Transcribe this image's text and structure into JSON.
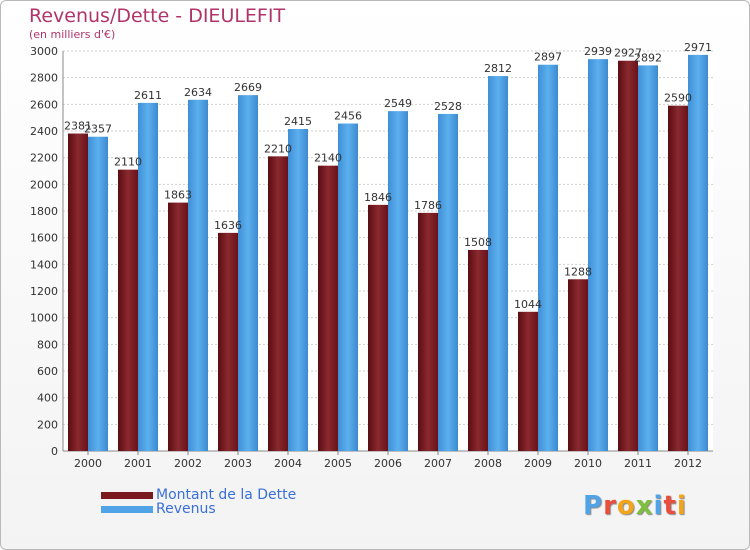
{
  "title": "Revenus/Dette - DIEULEFIT",
  "subtitle": "(en milliers d'€)",
  "logo": "Proxiti",
  "colors": {
    "dette": "#7a1a1f",
    "revenus": "#4fa3e6",
    "grid": "#cfcfcf",
    "title": "#b0346a",
    "legend_text": "#3a6fd8"
  },
  "legend": [
    {
      "label": "Montant de la Dette",
      "color": "#7a1a1f"
    },
    {
      "label": "Revenus",
      "color": "#4fa3e6"
    }
  ],
  "chart_data": {
    "type": "bar",
    "title": "Revenus/Dette - DIEULEFIT",
    "subtitle": "(en milliers d'€)",
    "categories": [
      "2000",
      "2001",
      "2002",
      "2003",
      "2004",
      "2005",
      "2006",
      "2007",
      "2008",
      "2009",
      "2010",
      "2011",
      "2012"
    ],
    "series": [
      {
        "name": "Montant de la Dette",
        "values": [
          2381,
          2110,
          1863,
          1636,
          2210,
          2140,
          1846,
          1786,
          1508,
          1044,
          1288,
          2927,
          2590
        ],
        "labels": [
          "2381",
          "2110",
          "1863",
          "1636",
          "2210",
          "2140",
          "1846",
          "1786",
          "1508",
          "1044",
          "1288",
          "2927",
          "2590"
        ]
      },
      {
        "name": "Revenus",
        "values": [
          2357,
          2611,
          2634,
          2669,
          2415,
          2456,
          2549,
          2528,
          2812,
          2897,
          2939,
          2892,
          2971
        ],
        "labels": [
          "2357",
          "2611",
          "2634",
          "2669",
          "2415",
          "2456",
          "2549",
          "2528",
          "2812",
          "2897",
          "2939",
          "2892",
          "2971"
        ]
      }
    ],
    "y_ticks": [
      "0",
      "200",
      "400",
      "600",
      "800",
      "1000",
      "1200",
      "1400",
      "1600",
      "1800",
      "2000",
      "2200",
      "2400",
      "2600",
      "2800",
      "3000"
    ],
    "ylim": [
      0,
      3000
    ],
    "grid": true,
    "legend_position": "bottom-left"
  }
}
